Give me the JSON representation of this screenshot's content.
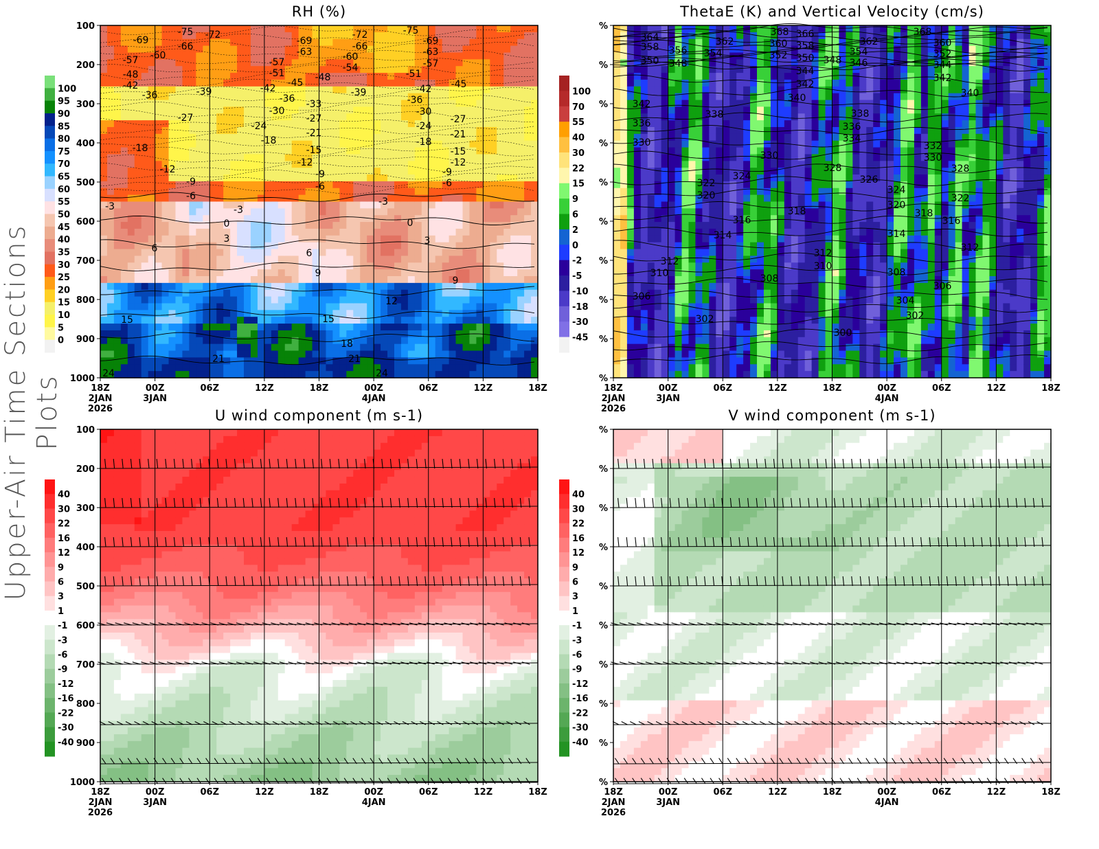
{
  "side_title": "Upper-Air Time Sections Plots",
  "time_axis": {
    "ticks": [
      "18Z",
      "00Z",
      "06Z",
      "12Z",
      "18Z",
      "00Z",
      "06Z",
      "12Z",
      "18Z"
    ],
    "dates": [
      {
        "tick": 0,
        "lines": [
          "2JAN",
          "2026"
        ]
      },
      {
        "tick": 1,
        "lines": [
          "3JAN"
        ]
      },
      {
        "tick": 5,
        "lines": [
          "4JAN"
        ]
      }
    ]
  },
  "panels": [
    {
      "id": "rh",
      "title": "RH (%)",
      "type": "filled-contour",
      "y_labels": [
        "100",
        "200",
        "300",
        "400",
        "500",
        "600",
        "700",
        "800",
        "900",
        "1000"
      ],
      "colorbar": {
        "labels": [
          "100",
          "95",
          "90",
          "85",
          "80",
          "75",
          "70",
          "65",
          "60",
          "55",
          "50",
          "45",
          "40",
          "35",
          "30",
          "25",
          "20",
          "15",
          "10",
          "5",
          "0"
        ],
        "colors": [
          "#7ae07a",
          "#40b040",
          "#078207",
          "#03218c",
          "#0548b8",
          "#0a6fe6",
          "#1491ff",
          "#32b8ff",
          "#9ad2ff",
          "#d8e0ff",
          "#ffe2e4",
          "#f5c6b0",
          "#edac90",
          "#e88c7a",
          "#e27262",
          "#ff5a1a",
          "#ff9e14",
          "#ffd024",
          "#f5f06a",
          "#fff54a",
          "#fffaa0",
          "#f2f2f2"
        ]
      },
      "contour_labels": [
        "-69",
        "-75",
        "-72",
        "-66",
        "-57",
        "-60",
        "-48",
        "-42",
        "-36",
        "-39",
        "-27",
        "-18",
        "-12",
        "-9",
        "-6",
        "-3",
        "-3",
        "0",
        "3",
        "6",
        "6",
        "9",
        "12",
        "15",
        "15",
        "21",
        "18",
        "21",
        "24",
        "24",
        "-57",
        "-51",
        "-42",
        "-45",
        "-48",
        "-30",
        "-36",
        "-33",
        "-24",
        "-18",
        "-27",
        "-21",
        "-15",
        "-12",
        "-9",
        "-6",
        "-69",
        "-63",
        "-72",
        "-66",
        "-60",
        "-54",
        "-39",
        "-51",
        "-42",
        "-36",
        "-30",
        "-24",
        "-18",
        "-75",
        "-69",
        "-63",
        "-57",
        "-45",
        "-27",
        "-21",
        "-15",
        "-12",
        "-9",
        "-6",
        "-3",
        "0",
        "3",
        "9"
      ]
    },
    {
      "id": "thetae",
      "title": "ThetaE (K) and Vertical Velocity (cm/s)",
      "type": "filled-contour",
      "y_labels": [
        "%",
        "%",
        "%",
        "%",
        "%",
        "%",
        "%",
        "%",
        "%",
        "%"
      ],
      "colorbar": {
        "labels": [
          "100",
          "70",
          "55",
          "40",
          "30",
          "22",
          "15",
          "9",
          "6",
          "2",
          "0",
          "-2",
          "-5",
          "-10",
          "-18",
          "-30",
          "-45"
        ],
        "colors": [
          "#a52222",
          "#b52a2a",
          "#c93e3e",
          "#ff9f00",
          "#ffc040",
          "#ffe37a",
          "#fff6ad",
          "#80f870",
          "#38d038",
          "#0fa00f",
          "#1464d2",
          "#1e3cff",
          "#2a009b",
          "#2c1fa0",
          "#4b3ac8",
          "#7060da",
          "#8070e6",
          "#f2f2f2"
        ]
      },
      "contour_labels": [
        "364",
        "358",
        "350",
        "356",
        "348",
        "362",
        "354",
        "368",
        "366",
        "360",
        "358",
        "352",
        "350",
        "348",
        "344",
        "342",
        "340",
        "362",
        "354",
        "346",
        "368",
        "360",
        "352",
        "344",
        "342",
        "340",
        "342",
        "336",
        "330",
        "338",
        "338",
        "336",
        "334",
        "330",
        "332",
        "330",
        "328",
        "328",
        "326",
        "324",
        "322",
        "320",
        "324",
        "320",
        "322",
        "318",
        "316",
        "318",
        "316",
        "314",
        "314",
        "312",
        "310",
        "312",
        "310",
        "308",
        "308",
        "306",
        "306",
        "304",
        "302",
        "302",
        "300",
        "312"
      ]
    },
    {
      "id": "u",
      "title": "U wind component (m s-1)",
      "type": "filled-contour",
      "y_labels": [
        "100",
        "200",
        "300",
        "400",
        "500",
        "600",
        "700",
        "800",
        "900",
        "1000"
      ],
      "colorbar": {
        "labels": [
          "40",
          "30",
          "22",
          "16",
          "12",
          "9",
          "6",
          "3",
          "1",
          "-1",
          "-3",
          "-6",
          "-9",
          "-12",
          "-16",
          "-22",
          "-30",
          "-40"
        ],
        "colors": [
          "#ff1414",
          "#ff2e2e",
          "#ff4848",
          "#ff6262",
          "#ff7c7c",
          "#ff9494",
          "#ffacac",
          "#ffc4c4",
          "#ffe0e0",
          "#ffffff",
          "#e2f0e2",
          "#cce6cc",
          "#b4dab4",
          "#9ccc9c",
          "#84c084",
          "#6cb46c",
          "#54a854",
          "#3c9c3c",
          "#239323"
        ]
      }
    },
    {
      "id": "v",
      "title": "V wind component (m s-1)",
      "type": "filled-contour",
      "y_labels": [
        "%",
        "%",
        "%",
        "%",
        "%",
        "%",
        "%",
        "%",
        "%",
        "%"
      ],
      "colorbar": {
        "labels": [
          "40",
          "30",
          "22",
          "16",
          "12",
          "9",
          "6",
          "3",
          "1",
          "-1",
          "-3",
          "-6",
          "-9",
          "-12",
          "-16",
          "-22",
          "-30",
          "-40"
        ],
        "colors": [
          "#ff1414",
          "#ff2e2e",
          "#ff4848",
          "#ff6262",
          "#ff7c7c",
          "#ff9494",
          "#ffacac",
          "#ffc4c4",
          "#ffe0e0",
          "#ffffff",
          "#e2f0e2",
          "#cce6cc",
          "#b4dab4",
          "#9ccc9c",
          "#84c084",
          "#6cb46c",
          "#54a854",
          "#3c9c3c",
          "#239323"
        ]
      }
    }
  ]
}
